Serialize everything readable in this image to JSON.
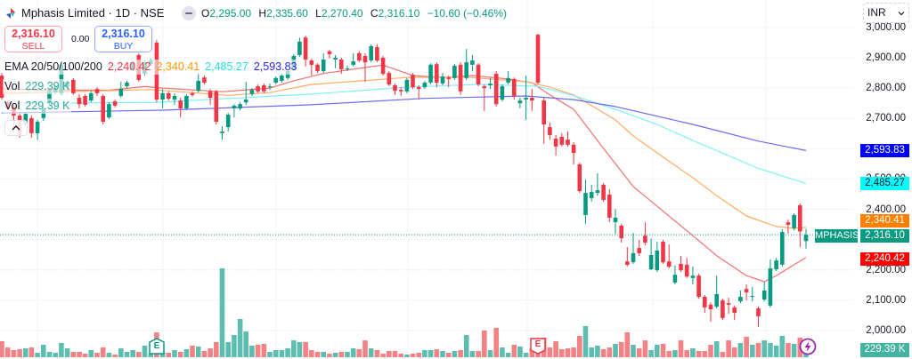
{
  "header": {
    "symbol": "Mphasis Limited · 1D · NSE",
    "ohlc": [
      {
        "label": "O",
        "value": "2,295.00"
      },
      {
        "label": "H",
        "value": "2,335.60"
      },
      {
        "label": "L",
        "value": "2,270.40"
      },
      {
        "label": "C",
        "value": "2,316.10"
      }
    ],
    "change": "−10.60 (−0.46%)"
  },
  "trade": {
    "sell_price": "2,316.10",
    "sell_label": "SELL",
    "spread": "0.00",
    "buy_price": "2,316.10",
    "buy_label": "BUY"
  },
  "legend": {
    "ema_title": "EMA 20/50/100/200",
    "ema_values": [
      "2,240.42",
      "2,340.41",
      "2,485.27",
      "2,593.83"
    ],
    "vol_rows": [
      {
        "label": "Vol",
        "value": "229.39 K"
      },
      {
        "label": "Vol",
        "value": "229.39 K"
      }
    ]
  },
  "currency": "INR",
  "price_axis": {
    "ticks": [
      {
        "label": "3,000.00",
        "value": 3000
      },
      {
        "label": "2,900.00",
        "value": 2900
      },
      {
        "label": "2,800.00",
        "value": 2800
      },
      {
        "label": "2,700.00",
        "value": 2700
      },
      {
        "label": "2,500.00",
        "value": 2500
      },
      {
        "label": "2,400.00",
        "value": 2400
      },
      {
        "label": "2,200.00",
        "value": 2200
      },
      {
        "label": "2,100.00",
        "value": 2100
      },
      {
        "label": "2,000.00",
        "value": 2000
      }
    ]
  },
  "axis_labels": {
    "ema200": {
      "text": "2,593.83",
      "bg": "#0000ff",
      "fg": "#ffffff"
    },
    "ema100": {
      "text": "2,485.27",
      "bg": "#00ffff",
      "fg": "#131722"
    },
    "ema50": {
      "text": "2,340.41",
      "bg": "#ff8000",
      "fg": "#ffffff"
    },
    "last_price": {
      "symbol": "MPHASIS",
      "text": "2,316.10",
      "bg": "#089981",
      "fg": "#ffffff"
    },
    "ema20": {
      "text": "2,240.42",
      "bg": "#ff0000",
      "fg": "#ffffff"
    },
    "volume": {
      "text": "229.39 K",
      "bg": "#45b3a2",
      "fg": "#ffffff"
    }
  },
  "colors": {
    "up": "#089981",
    "down": "#f23645",
    "volume_up": "#5dbdb0",
    "volume_down": "#f48183",
    "grid": "#f0f3fa",
    "last_price_line": "#089981",
    "legend_ema20": "#f23645",
    "legend_ema50": "#ff9800",
    "legend_ema100": "#22dede",
    "legend_ema200": "#2424ee",
    "vol_text": "#26a69a"
  },
  "chart_data": {
    "type": "candlestick",
    "title": "Mphasis Limited · 1D · NSE",
    "xlabel": "",
    "ylabel": "INR",
    "ylim": [
      1911,
      3090
    ],
    "y_ticks": [
      3000,
      2900,
      2800,
      2700,
      2600,
      2500,
      2400,
      2300,
      2200,
      2100,
      2000
    ],
    "grid": true,
    "last_price": 2316.1,
    "candle_fields": [
      "open",
      "high",
      "low",
      "close",
      "volume_k"
    ],
    "candles": [
      [
        2841,
        2850,
        2762,
        2768,
        413
      ],
      [
        2753,
        2759,
        2727,
        2733,
        252
      ],
      [
        2739,
        2745,
        2651,
        2709,
        184
      ],
      [
        2709,
        2715,
        2636,
        2642,
        206
      ],
      [
        2680,
        2721,
        2674,
        2715,
        229
      ],
      [
        2701,
        2709,
        2636,
        2651,
        252
      ],
      [
        2651,
        2695,
        2630,
        2689,
        115
      ],
      [
        2701,
        2739,
        2692,
        2733,
        321
      ],
      [
        2753,
        2797,
        2745,
        2791,
        138
      ],
      [
        2786,
        2809,
        2780,
        2803,
        115
      ],
      [
        2783,
        2885,
        2777,
        2877,
        367
      ],
      [
        2803,
        2827,
        2794,
        2821,
        229
      ],
      [
        2827,
        2833,
        2777,
        2783,
        138
      ],
      [
        2768,
        2780,
        2733,
        2747,
        138
      ],
      [
        2774,
        2780,
        2739,
        2745,
        92
      ],
      [
        2759,
        2789,
        2753,
        2783,
        184
      ],
      [
        2797,
        2803,
        2774,
        2783,
        115
      ],
      [
        2774,
        2780,
        2680,
        2689,
        252
      ],
      [
        2703,
        2753,
        2698,
        2747,
        115
      ],
      [
        2756,
        2762,
        2736,
        2742,
        69
      ],
      [
        2774,
        2821,
        2768,
        2797,
        229
      ],
      [
        2806,
        2824,
        2800,
        2818,
        138
      ],
      [
        2862,
        2891,
        2856,
        2885,
        184
      ],
      [
        2909,
        2915,
        2821,
        2827,
        138
      ],
      [
        2847,
        2891,
        2841,
        2885,
        298
      ],
      [
        2879,
        2897,
        2874,
        2891,
        92
      ],
      [
        2950,
        2959,
        2753,
        2762,
        642
      ],
      [
        2762,
        2797,
        2733,
        2783,
        138
      ],
      [
        2783,
        2789,
        2759,
        2765,
        115
      ],
      [
        2762,
        2783,
        2745,
        2774,
        184
      ],
      [
        2759,
        2768,
        2703,
        2733,
        138
      ],
      [
        2733,
        2780,
        2727,
        2774,
        206
      ],
      [
        2783,
        2789,
        2771,
        2777,
        298
      ],
      [
        2791,
        2850,
        2786,
        2824,
        275
      ],
      [
        2835,
        2841,
        2812,
        2818,
        161
      ],
      [
        2789,
        2797,
        2745,
        2768,
        229
      ],
      [
        2789,
        2794,
        2680,
        2689,
        390
      ],
      [
        2651,
        2674,
        2630,
        2657,
        2294
      ],
      [
        2671,
        2718,
        2657,
        2712,
        390
      ],
      [
        2733,
        2747,
        2703,
        2742,
        574
      ],
      [
        2733,
        2753,
        2727,
        2747,
        986
      ],
      [
        2753,
        2821,
        2745,
        2762,
        665
      ],
      [
        2780,
        2800,
        2774,
        2794,
        298
      ],
      [
        2806,
        2812,
        2783,
        2789,
        321
      ],
      [
        2809,
        2815,
        2783,
        2789,
        344
      ],
      [
        2803,
        2815,
        2794,
        2806,
        138
      ],
      [
        2818,
        2838,
        2812,
        2833,
        184
      ],
      [
        2824,
        2847,
        2818,
        2841,
        184
      ],
      [
        2833,
        2862,
        2827,
        2856,
        229
      ],
      [
        2865,
        2912,
        2859,
        2906,
        436
      ],
      [
        2909,
        2967,
        2903,
        2953,
        390
      ],
      [
        2967,
        2973,
        2871,
        2894,
        390
      ],
      [
        2891,
        2897,
        2841,
        2877,
        184
      ],
      [
        2877,
        2882,
        2850,
        2856,
        138
      ],
      [
        2856,
        2915,
        2850,
        2894,
        138
      ],
      [
        2921,
        2926,
        2897,
        2912,
        92
      ],
      [
        2894,
        2909,
        2865,
        2900,
        115
      ],
      [
        2894,
        2900,
        2847,
        2862,
        138
      ],
      [
        2862,
        2874,
        2856,
        2865,
        138
      ],
      [
        2877,
        2915,
        2871,
        2888,
        229
      ],
      [
        2915,
        2921,
        2885,
        2891,
        206
      ],
      [
        2906,
        2915,
        2821,
        2885,
        436
      ],
      [
        2891,
        2944,
        2885,
        2938,
        229
      ],
      [
        2935,
        2944,
        2885,
        2891,
        184
      ],
      [
        2900,
        2906,
        2841,
        2847,
        92
      ],
      [
        2850,
        2856,
        2806,
        2812,
        161
      ],
      [
        2809,
        2815,
        2777,
        2791,
        161
      ],
      [
        2794,
        2803,
        2774,
        2789,
        92
      ],
      [
        2789,
        2833,
        2783,
        2827,
        69
      ],
      [
        2844,
        2850,
        2797,
        2803,
        92
      ],
      [
        2803,
        2809,
        2762,
        2797,
        115
      ],
      [
        2803,
        2824,
        2797,
        2818,
        184
      ],
      [
        2818,
        2882,
        2812,
        2877,
        184
      ],
      [
        2879,
        2885,
        2803,
        2818,
        206
      ],
      [
        2815,
        2850,
        2809,
        2838,
        161
      ],
      [
        2835,
        2841,
        2803,
        2830,
        115
      ],
      [
        2833,
        2879,
        2827,
        2874,
        161
      ],
      [
        2877,
        2885,
        2777,
        2789,
        184
      ],
      [
        2833,
        2929,
        2827,
        2885,
        574
      ],
      [
        2877,
        2909,
        2856,
        2891,
        161
      ],
      [
        2877,
        2882,
        2806,
        2812,
        161
      ],
      [
        2806,
        2812,
        2724,
        2800,
        688
      ],
      [
        2809,
        2833,
        2797,
        2815,
        184
      ],
      [
        2847,
        2856,
        2739,
        2747,
        757
      ],
      [
        2762,
        2812,
        2756,
        2806,
        252
      ],
      [
        2818,
        2856,
        2812,
        2833,
        115
      ],
      [
        2830,
        2835,
        2762,
        2774,
        321
      ],
      [
        2750,
        2768,
        2733,
        2759,
        275
      ],
      [
        2762,
        2841,
        2695,
        2768,
        115
      ],
      [
        2768,
        2797,
        2724,
        2759,
        229
      ],
      [
        2976,
        2979,
        2812,
        2818,
        482
      ],
      [
        2759,
        2768,
        2616,
        2680,
        505
      ],
      [
        2671,
        2686,
        2630,
        2645,
        252
      ],
      [
        2633,
        2645,
        2577,
        2607,
        413
      ],
      [
        2639,
        2651,
        2607,
        2613,
        206
      ],
      [
        2630,
        2657,
        2607,
        2613,
        229
      ],
      [
        2613,
        2621,
        2548,
        2586,
        252
      ],
      [
        2548,
        2554,
        2454,
        2460,
        551
      ],
      [
        2381,
        2498,
        2352,
        2454,
        803
      ],
      [
        2437,
        2481,
        2425,
        2457,
        252
      ],
      [
        2454,
        2519,
        2445,
        2463,
        298
      ],
      [
        2481,
        2486,
        2425,
        2431,
        206
      ],
      [
        2448,
        2466,
        2357,
        2372,
        252
      ],
      [
        2357,
        2401,
        2319,
        2372,
        344
      ],
      [
        2346,
        2352,
        2290,
        2304,
        390
      ],
      [
        2228,
        2275,
        2211,
        2217,
        642
      ],
      [
        2225,
        2322,
        2220,
        2255,
        321
      ],
      [
        2272,
        2299,
        2246,
        2255,
        229
      ],
      [
        2313,
        2357,
        2281,
        2290,
        436
      ],
      [
        2202,
        2304,
        2199,
        2249,
        184
      ],
      [
        2199,
        2293,
        2193,
        2264,
        321
      ],
      [
        2293,
        2299,
        2220,
        2225,
        344
      ],
      [
        2228,
        2284,
        2205,
        2211,
        161
      ],
      [
        2158,
        2214,
        2152,
        2184,
        184
      ],
      [
        2220,
        2246,
        2193,
        2199,
        436
      ],
      [
        2217,
        2240,
        2173,
        2178,
        184
      ],
      [
        2173,
        2211,
        2152,
        2181,
        229
      ],
      [
        2181,
        2187,
        2105,
        2111,
        161
      ],
      [
        2111,
        2117,
        2058,
        2076,
        161
      ],
      [
        2085,
        2093,
        2029,
        2070,
        321
      ],
      [
        2079,
        2181,
        2073,
        2120,
        413
      ],
      [
        2099,
        2105,
        2035,
        2041,
        138
      ],
      [
        2090,
        2108,
        2055,
        2085,
        436
      ],
      [
        2076,
        2082,
        2035,
        2058,
        252
      ],
      [
        2096,
        2132,
        2090,
        2111,
        367
      ],
      [
        2137,
        2152,
        2099,
        2126,
        528
      ],
      [
        2111,
        2143,
        2096,
        2114,
        321
      ],
      [
        2073,
        2079,
        2011,
        2047,
        367
      ],
      [
        2102,
        2161,
        2096,
        2132,
        436
      ],
      [
        2082,
        2234,
        2076,
        2205,
        367
      ],
      [
        2202,
        2240,
        2196,
        2231,
        298
      ],
      [
        2217,
        2334,
        2211,
        2325,
        551
      ],
      [
        2357,
        2366,
        2319,
        2349,
        367
      ],
      [
        2337,
        2387,
        2331,
        2381,
        344
      ],
      [
        2413,
        2419,
        2275,
        2326.7,
        505
      ],
      [
        2295,
        2335.6,
        2270.4,
        2316.1,
        229.39
      ]
    ],
    "series": [
      {
        "id": "ema20",
        "name": "EMA 20",
        "color": "#f07272",
        "last": 2240.42,
        "points": [
          [
            0,
            2797
          ],
          [
            9,
            2793
          ],
          [
            18,
            2793
          ],
          [
            24,
            2805
          ],
          [
            27,
            2800
          ],
          [
            37,
            2788
          ],
          [
            45,
            2800
          ],
          [
            49,
            2824
          ],
          [
            54,
            2848
          ],
          [
            60,
            2865
          ],
          [
            64,
            2876
          ],
          [
            69,
            2841
          ],
          [
            74,
            2835
          ],
          [
            79,
            2841
          ],
          [
            84,
            2832
          ],
          [
            89,
            2818
          ],
          [
            92,
            2777
          ],
          [
            96,
            2730
          ],
          [
            101,
            2601
          ],
          [
            106,
            2475
          ],
          [
            110,
            2410
          ],
          [
            116,
            2313
          ],
          [
            120,
            2247
          ],
          [
            125,
            2181
          ],
          [
            128,
            2161
          ],
          [
            130,
            2181
          ],
          [
            133,
            2217
          ],
          [
            135,
            2240.42
          ]
        ]
      },
      {
        "id": "ema50",
        "name": "EMA 50",
        "color": "#ffab62",
        "last": 2340.41,
        "points": [
          [
            0,
            2782
          ],
          [
            15,
            2790
          ],
          [
            25,
            2795
          ],
          [
            38,
            2776
          ],
          [
            45,
            2785
          ],
          [
            52,
            2812
          ],
          [
            68,
            2835
          ],
          [
            78,
            2836
          ],
          [
            88,
            2821
          ],
          [
            92,
            2803
          ],
          [
            96,
            2777
          ],
          [
            103,
            2695
          ],
          [
            106,
            2642
          ],
          [
            111,
            2572
          ],
          [
            116,
            2504
          ],
          [
            120,
            2445
          ],
          [
            125,
            2378
          ],
          [
            130,
            2343
          ],
          [
            133,
            2337
          ],
          [
            135,
            2340.41
          ]
        ]
      },
      {
        "id": "ema100",
        "name": "EMA 100",
        "color": "#7ff3f3",
        "last": 2485.27,
        "points": [
          [
            0,
            2750
          ],
          [
            25,
            2752
          ],
          [
            52,
            2780
          ],
          [
            68,
            2803
          ],
          [
            80,
            2812
          ],
          [
            90,
            2806
          ],
          [
            96,
            2775
          ],
          [
            103,
            2730
          ],
          [
            110,
            2680
          ],
          [
            116,
            2627
          ],
          [
            127,
            2535
          ],
          [
            135,
            2485.27
          ]
        ]
      },
      {
        "id": "ema200",
        "name": "EMA 200",
        "color": "#6b6bf2",
        "last": 2593.83,
        "points": [
          [
            0,
            2718
          ],
          [
            27,
            2727
          ],
          [
            52,
            2745
          ],
          [
            71,
            2766
          ],
          [
            88,
            2774
          ],
          [
            96,
            2762
          ],
          [
            103,
            2739
          ],
          [
            116,
            2680
          ],
          [
            127,
            2625
          ],
          [
            135,
            2593.83
          ]
        ]
      }
    ],
    "markers": [
      {
        "label": "E",
        "kind": "earnings",
        "index": 26,
        "color": "#089981"
      },
      {
        "label": "E",
        "kind": "earnings",
        "index": 90,
        "color": "#f23645"
      },
      {
        "label": "lightning",
        "kind": "event",
        "index": 135,
        "color": "#9c27b0"
      }
    ]
  }
}
